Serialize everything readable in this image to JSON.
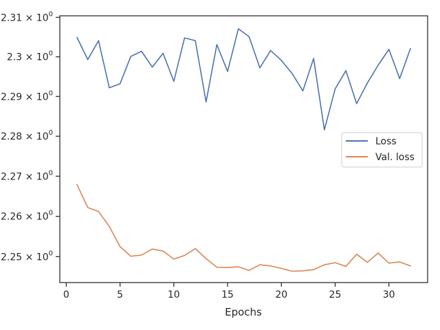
{
  "chart_data": {
    "type": "line",
    "xlabel": "Epochs",
    "ylabel": "",
    "y_scale": "log",
    "xlim": [
      -0.6,
      33.6
    ],
    "ylim": [
      2.2436,
      2.3104
    ],
    "x_ticks": [
      0,
      5,
      10,
      15,
      20,
      25,
      30
    ],
    "x_tick_labels": [
      "0",
      "5",
      "10",
      "15",
      "20",
      "25",
      "30"
    ],
    "y_ticks": [
      2.25,
      2.26,
      2.27,
      2.28,
      2.29,
      2.3,
      2.31
    ],
    "y_tick_labels": [
      "2.25",
      "2.26",
      "2.27",
      "2.28",
      "2.29",
      "2.3",
      "2.31"
    ],
    "y_tick_exponent": "0",
    "y_tick_times": "×",
    "y_tick_base": "10",
    "legend_position": "center-right",
    "grid": false,
    "x": [
      1,
      2,
      3,
      4,
      5,
      6,
      7,
      8,
      9,
      10,
      11,
      12,
      13,
      14,
      15,
      16,
      17,
      18,
      19,
      20,
      21,
      22,
      23,
      24,
      25,
      26,
      27,
      28,
      29,
      30,
      31,
      32
    ],
    "series": [
      {
        "name": "Loss",
        "color": "#4c72b0",
        "values": [
          2.3049,
          2.2993,
          2.3041,
          2.2922,
          2.2932,
          2.3001,
          2.3014,
          2.2974,
          2.3009,
          2.2938,
          2.3048,
          2.3041,
          2.2886,
          2.3031,
          2.2963,
          2.3071,
          2.3051,
          2.2972,
          2.3016,
          2.2991,
          2.2958,
          2.2914,
          2.2996,
          2.2816,
          2.2919,
          2.2965,
          2.2882,
          2.2934,
          2.2979,
          2.3019,
          2.2945,
          2.3021
        ]
      },
      {
        "name": "Val. loss",
        "color": "#dd8452",
        "values": [
          2.2679,
          2.2622,
          2.2612,
          2.2575,
          2.2525,
          2.2501,
          2.2504,
          2.2519,
          2.2514,
          2.2494,
          2.2503,
          2.252,
          2.2495,
          2.2474,
          2.2473,
          2.2475,
          2.2466,
          2.248,
          2.2477,
          2.2471,
          2.2464,
          2.2465,
          2.2468,
          2.248,
          2.2485,
          2.2476,
          2.2506,
          2.2486,
          2.2509,
          2.2484,
          2.2487,
          2.2477
        ]
      }
    ]
  }
}
